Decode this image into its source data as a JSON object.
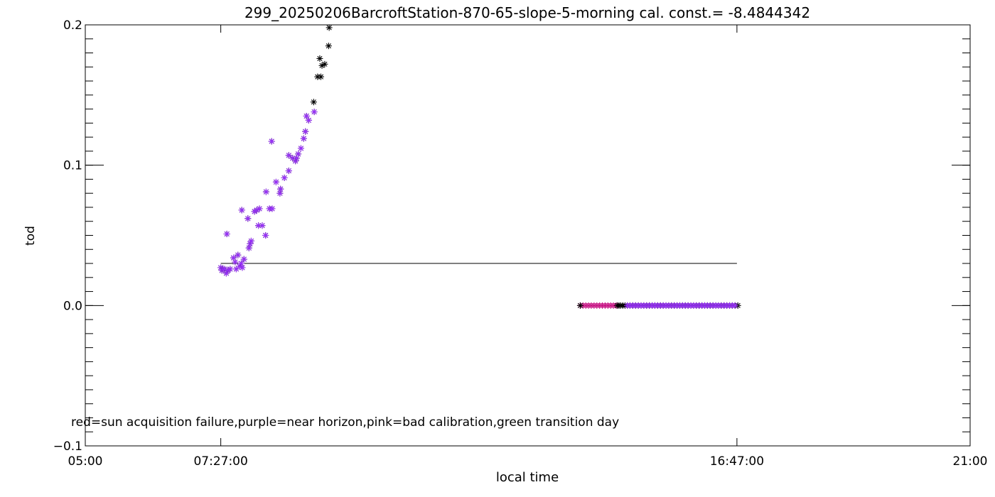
{
  "chart_data": {
    "type": "scatter",
    "title": "299_20250206BarcroftStation-870-65-slope-5-morning cal. const.= -8.4844342",
    "xlabel": "local time",
    "ylabel": "tod",
    "xlim_hours": [
      5,
      21
    ],
    "ylim": [
      -0.1,
      0.2
    ],
    "x_ticks": [
      {
        "hour": 5.0,
        "label": "05:00"
      },
      {
        "hour": 7.45,
        "label": "07:27:00"
      },
      {
        "hour": 16.7833,
        "label": "16:47:00"
      },
      {
        "hour": 21.0,
        "label": "21:00"
      }
    ],
    "y_ticks": [
      {
        "value": -0.1,
        "label": "−0.1"
      },
      {
        "value": 0.0,
        "label": "0.0"
      },
      {
        "value": 0.1,
        "label": "0.1"
      },
      {
        "value": 0.2,
        "label": "0.2"
      }
    ],
    "reference_line": {
      "x_start": 7.45,
      "x_end": 16.7833,
      "y": 0.03
    },
    "legend_text": "red=sun acquisition failure,purple=near horizon,pink=bad calibration,green transition day",
    "colors": {
      "black": "#000000",
      "purple": "#9b30ff",
      "pink": "#c71585",
      "axis": "#000000"
    },
    "series": [
      {
        "color": "purple",
        "points": [
          [
            7.45,
            0.027
          ],
          [
            7.47,
            0.025
          ],
          [
            7.49,
            0.026
          ],
          [
            7.52,
            0.026
          ],
          [
            7.55,
            0.023
          ],
          [
            7.58,
            0.025
          ],
          [
            7.62,
            0.026
          ],
          [
            7.56,
            0.051
          ],
          [
            7.68,
            0.034
          ],
          [
            7.71,
            0.031
          ],
          [
            7.73,
            0.026
          ],
          [
            7.76,
            0.036
          ],
          [
            7.79,
            0.028
          ],
          [
            7.82,
            0.03
          ],
          [
            7.84,
            0.027
          ],
          [
            7.87,
            0.033
          ],
          [
            7.83,
            0.068
          ],
          [
            7.94,
            0.062
          ],
          [
            7.96,
            0.041
          ],
          [
            7.98,
            0.044
          ],
          [
            8.0,
            0.046
          ],
          [
            8.06,
            0.067
          ],
          [
            8.1,
            0.068
          ],
          [
            8.13,
            0.057
          ],
          [
            8.15,
            0.069
          ],
          [
            8.2,
            0.057
          ],
          [
            8.26,
            0.05
          ],
          [
            8.27,
            0.081
          ],
          [
            8.33,
            0.069
          ],
          [
            8.38,
            0.069
          ],
          [
            8.37,
            0.117
          ],
          [
            8.45,
            0.088
          ],
          [
            8.52,
            0.08
          ],
          [
            8.53,
            0.083
          ],
          [
            8.6,
            0.091
          ],
          [
            8.68,
            0.096
          ],
          [
            8.68,
            0.107
          ],
          [
            8.75,
            0.105
          ],
          [
            8.8,
            0.103
          ],
          [
            8.82,
            0.105
          ],
          [
            8.85,
            0.108
          ],
          [
            8.9,
            0.112
          ],
          [
            8.95,
            0.119
          ],
          [
            8.98,
            0.124
          ],
          [
            9.0,
            0.135
          ],
          [
            9.04,
            0.132
          ],
          [
            9.14,
            0.138
          ]
        ]
      },
      {
        "color": "black",
        "points": [
          [
            9.13,
            0.145
          ],
          [
            9.2,
            0.163
          ],
          [
            9.26,
            0.163
          ],
          [
            9.24,
            0.176
          ],
          [
            9.28,
            0.171
          ],
          [
            9.33,
            0.172
          ],
          [
            9.4,
            0.185
          ],
          [
            9.41,
            0.198
          ]
        ]
      },
      {
        "color": "pink",
        "points": [
          [
            13.95,
            0.0
          ],
          [
            14.0,
            0.0
          ],
          [
            14.05,
            0.0
          ],
          [
            14.1,
            0.0
          ],
          [
            14.15,
            0.0
          ],
          [
            14.2,
            0.0
          ],
          [
            14.25,
            0.0
          ],
          [
            14.3,
            0.0
          ],
          [
            14.35,
            0.0
          ],
          [
            14.4,
            0.0
          ],
          [
            14.45,
            0.0
          ],
          [
            14.5,
            0.0
          ],
          [
            14.55,
            0.0
          ],
          [
            14.6,
            0.0
          ]
        ]
      },
      {
        "color": "black",
        "points": [
          [
            13.95,
            0.0
          ],
          [
            14.62,
            0.0
          ],
          [
            14.65,
            0.0
          ],
          [
            14.68,
            0.0
          ],
          [
            14.72,
            0.0
          ],
          [
            14.76,
            0.0
          ],
          [
            16.8,
            0.0
          ]
        ]
      },
      {
        "color": "purple",
        "points": [
          [
            14.8,
            0.0
          ],
          [
            14.85,
            0.0
          ],
          [
            14.9,
            0.0
          ],
          [
            14.95,
            0.0
          ],
          [
            15.0,
            0.0
          ],
          [
            15.05,
            0.0
          ],
          [
            15.1,
            0.0
          ],
          [
            15.15,
            0.0
          ],
          [
            15.2,
            0.0
          ],
          [
            15.25,
            0.0
          ],
          [
            15.3,
            0.0
          ],
          [
            15.35,
            0.0
          ],
          [
            15.4,
            0.0
          ],
          [
            15.45,
            0.0
          ],
          [
            15.5,
            0.0
          ],
          [
            15.55,
            0.0
          ],
          [
            15.6,
            0.0
          ],
          [
            15.65,
            0.0
          ],
          [
            15.7,
            0.0
          ],
          [
            15.75,
            0.0
          ],
          [
            15.8,
            0.0
          ],
          [
            15.85,
            0.0
          ],
          [
            15.9,
            0.0
          ],
          [
            15.95,
            0.0
          ],
          [
            16.0,
            0.0
          ],
          [
            16.05,
            0.0
          ],
          [
            16.1,
            0.0
          ],
          [
            16.15,
            0.0
          ],
          [
            16.2,
            0.0
          ],
          [
            16.25,
            0.0
          ],
          [
            16.3,
            0.0
          ],
          [
            16.35,
            0.0
          ],
          [
            16.4,
            0.0
          ],
          [
            16.45,
            0.0
          ],
          [
            16.5,
            0.0
          ],
          [
            16.55,
            0.0
          ],
          [
            16.6,
            0.0
          ],
          [
            16.65,
            0.0
          ],
          [
            16.7,
            0.0
          ],
          [
            16.75,
            0.0
          ]
        ]
      }
    ]
  }
}
